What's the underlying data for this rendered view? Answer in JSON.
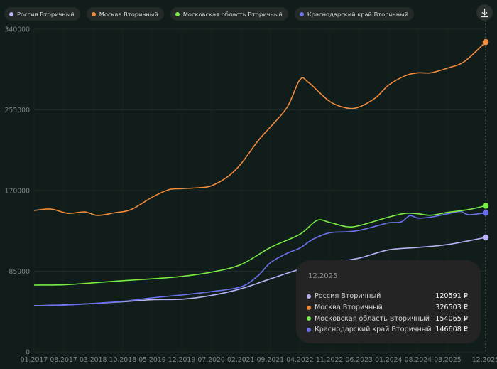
{
  "legend": [
    {
      "label": "Россия Вторичный",
      "color": "#b7b1f5"
    },
    {
      "label": "Москва Вторичный",
      "color": "#f28a3c"
    },
    {
      "label": "Московская область Вторичный",
      "color": "#79ec45"
    },
    {
      "label": "Краснодарский край Вторичный",
      "color": "#6c72ee"
    }
  ],
  "toolbar": {
    "download_icon": "download-icon"
  },
  "tooltip": {
    "date": "12.2025",
    "rows": [
      {
        "label": "Россия Вторичный",
        "value": "120591 ₽",
        "color": "#b7b1f5"
      },
      {
        "label": "Москва Вторичный",
        "value": "326503 ₽",
        "color": "#f28a3c"
      },
      {
        "label": "Московская область Вторичный",
        "value": "154065 ₽",
        "color": "#79ec45"
      },
      {
        "label": "Краснодарский край Вторичный",
        "value": "146608 ₽",
        "color": "#6c72ee"
      }
    ]
  },
  "chart_data": {
    "type": "line",
    "title": "",
    "xlabel": "",
    "ylabel": "",
    "x_start": "01.2017",
    "x_end": "12.2025",
    "x_ticks": [
      "01.2017",
      "08.2017",
      "03.2018",
      "10.2018",
      "05.2019",
      "12.2019",
      "07.2020",
      "02.2021",
      "09.2021",
      "04.2022",
      "11.2022",
      "06.2023",
      "01.2024",
      "08.2024",
      "03.2025",
      "12.2025"
    ],
    "y_ticks": [
      "0",
      "85000",
      "170000",
      "255000",
      "340000"
    ],
    "ylim": [
      0,
      340000
    ],
    "grid": true,
    "legend_position": "top-left",
    "series": [
      {
        "name": "Россия Вторичный",
        "color": "#b7b1f5",
        "anchors": [
          [
            "01.2017",
            48700
          ],
          [
            "08.2017",
            49500
          ],
          [
            "03.2018",
            51000
          ],
          [
            "10.2018",
            52800
          ],
          [
            "05.2019",
            55000
          ],
          [
            "12.2019",
            55500
          ],
          [
            "07.2020",
            59500
          ],
          [
            "02.2021",
            66500
          ],
          [
            "09.2021",
            77000
          ],
          [
            "04.2022",
            87000
          ],
          [
            "11.2022",
            93600
          ],
          [
            "06.2023",
            98800
          ],
          [
            "01.2024",
            107500
          ],
          [
            "08.2024",
            110100
          ],
          [
            "03.2025",
            113100
          ],
          [
            "12.2025",
            120591
          ]
        ]
      },
      {
        "name": "Москва Вторичный",
        "color": "#f28a3c",
        "anchors": [
          [
            "01.2017",
            149000
          ],
          [
            "05.2017",
            150500
          ],
          [
            "09.2017",
            146000
          ],
          [
            "01.2018",
            147500
          ],
          [
            "04.2018",
            143800
          ],
          [
            "08.2018",
            146500
          ],
          [
            "12.2018",
            150000
          ],
          [
            "05.2019",
            163000
          ],
          [
            "09.2019",
            171000
          ],
          [
            "12.2019",
            172000
          ],
          [
            "04.2020",
            173000
          ],
          [
            "07.2020",
            175000
          ],
          [
            "11.2020",
            185000
          ],
          [
            "02.2021",
            198000
          ],
          [
            "06.2021",
            222000
          ],
          [
            "09.2021",
            237000
          ],
          [
            "01.2022",
            258000
          ],
          [
            "04.2022",
            286800
          ],
          [
            "06.2022",
            284000
          ],
          [
            "11.2022",
            264000
          ],
          [
            "03.2023",
            257000
          ],
          [
            "06.2023",
            258000
          ],
          [
            "10.2023",
            268000
          ],
          [
            "01.2024",
            281000
          ],
          [
            "05.2024",
            291000
          ],
          [
            "08.2024",
            294000
          ],
          [
            "11.2024",
            294000
          ],
          [
            "03.2025",
            299000
          ],
          [
            "07.2025",
            306000
          ],
          [
            "12.2025",
            326503
          ]
        ]
      },
      {
        "name": "Московская область Вторичный",
        "color": "#79ec45",
        "anchors": [
          [
            "01.2017",
            70400
          ],
          [
            "08.2017",
            70700
          ],
          [
            "03.2018",
            72800
          ],
          [
            "10.2018",
            75000
          ],
          [
            "05.2019",
            77000
          ],
          [
            "12.2019",
            79500
          ],
          [
            "07.2020",
            84000
          ],
          [
            "02.2021",
            92000
          ],
          [
            "09.2021",
            110000
          ],
          [
            "04.2022",
            124000
          ],
          [
            "08.2022",
            138500
          ],
          [
            "11.2022",
            136500
          ],
          [
            "03.2023",
            132000
          ],
          [
            "06.2023",
            133000
          ],
          [
            "01.2024",
            142000
          ],
          [
            "05.2024",
            146000
          ],
          [
            "08.2024",
            145500
          ],
          [
            "11.2024",
            144000
          ],
          [
            "03.2025",
            147000
          ],
          [
            "08.2025",
            150000
          ],
          [
            "12.2025",
            154065
          ]
        ]
      },
      {
        "name": "Краснодарский край Вторичный",
        "color": "#6c72ee",
        "anchors": [
          [
            "01.2017",
            48700
          ],
          [
            "08.2017",
            49300
          ],
          [
            "03.2018",
            51000
          ],
          [
            "10.2018",
            53300
          ],
          [
            "05.2019",
            57000
          ],
          [
            "12.2019",
            60000
          ],
          [
            "07.2020",
            63500
          ],
          [
            "02.2021",
            68500
          ],
          [
            "06.2021",
            80000
          ],
          [
            "09.2021",
            94000
          ],
          [
            "01.2022",
            104000
          ],
          [
            "04.2022",
            109500
          ],
          [
            "07.2022",
            118500
          ],
          [
            "11.2022",
            125500
          ],
          [
            "03.2023",
            126500
          ],
          [
            "06.2023",
            128000
          ],
          [
            "10.2023",
            132500
          ],
          [
            "01.2024",
            136000
          ],
          [
            "04.2024",
            137000
          ],
          [
            "06.2024",
            143500
          ],
          [
            "08.2024",
            141000
          ],
          [
            "11.2024",
            142000
          ],
          [
            "03.2025",
            145500
          ],
          [
            "06.2025",
            148000
          ],
          [
            "08.2025",
            144500
          ],
          [
            "12.2025",
            146608
          ]
        ]
      }
    ]
  }
}
